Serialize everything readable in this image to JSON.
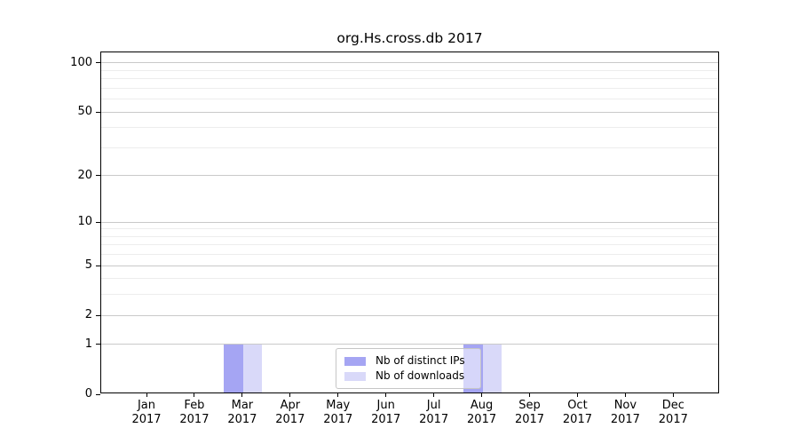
{
  "chart_data": {
    "type": "bar",
    "title": "org.Hs.cross.db 2017",
    "categories": [
      "Jan",
      "Feb",
      "Mar",
      "Apr",
      "May",
      "Jun",
      "Jul",
      "Aug",
      "Sep",
      "Oct",
      "Nov",
      "Dec"
    ],
    "category_year": "2017",
    "series": [
      {
        "name": "Nb of distinct IPs",
        "color": "#a5a5f3",
        "values": [
          0,
          0,
          1,
          0,
          0,
          0,
          0,
          1,
          0,
          0,
          0,
          0
        ]
      },
      {
        "name": "Nb of downloads",
        "color": "#d9d9f9",
        "values": [
          0,
          0,
          1,
          0,
          0,
          0,
          0,
          1,
          0,
          0,
          0,
          0
        ]
      }
    ],
    "y_scale": "log1p",
    "y_axis_ticks": [
      0,
      1,
      2,
      5,
      10,
      20,
      50,
      100
    ],
    "y_minor_gridlines": [
      3,
      4,
      6,
      7,
      8,
      9,
      30,
      40,
      60,
      70,
      80,
      90
    ],
    "ylim": [
      0,
      116
    ],
    "xlabel": "",
    "ylabel": "",
    "grid": "horizontal",
    "legend_position": "inside-bottom-center"
  },
  "legend": {
    "items": [
      {
        "label": "Nb of distinct IPs",
        "color": "#a5a5f3"
      },
      {
        "label": "Nb of downloads",
        "color": "#d9d9f9"
      }
    ]
  },
  "colors": {
    "bar_distinct_ips": "#a5a5f3",
    "bar_downloads": "#d9d9f9",
    "grid_major": "#c9c9c9",
    "grid_minor": "#ededed",
    "axis": "#000000",
    "background": "#ffffff"
  }
}
